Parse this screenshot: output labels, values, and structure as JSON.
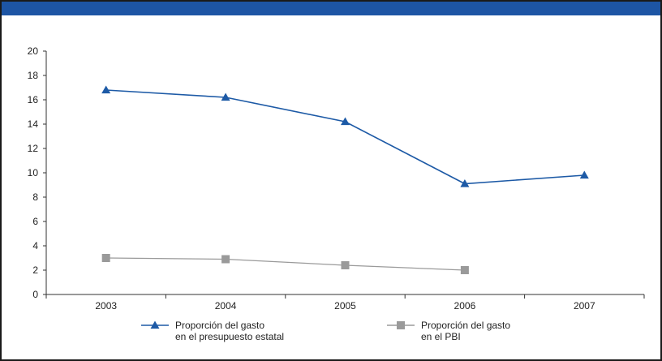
{
  "chart_data": {
    "type": "line",
    "categories": [
      "2003",
      "2004",
      "2005",
      "2006",
      "2007"
    ],
    "ylim": [
      0,
      20
    ],
    "yticks": [
      0,
      2,
      4,
      6,
      8,
      10,
      12,
      14,
      16,
      18,
      20
    ],
    "grid": false,
    "legend_position": "bottom",
    "series": [
      {
        "name": "Proporción del gasto en el presupuesto estatal",
        "label_lines": [
          "Proporción del gasto",
          "en el presupuesto estatal"
        ],
        "values": [
          16.8,
          16.2,
          14.2,
          9.1,
          9.8
        ],
        "color": "#1d5aa6",
        "marker": "triangle"
      },
      {
        "name": "Proporción del gasto en el PBI",
        "label_lines": [
          "Proporción del gasto",
          "en el PBI"
        ],
        "values": [
          3.0,
          2.9,
          2.4,
          2.0,
          null
        ],
        "color": "#9a9a9a",
        "marker": "square"
      }
    ]
  }
}
